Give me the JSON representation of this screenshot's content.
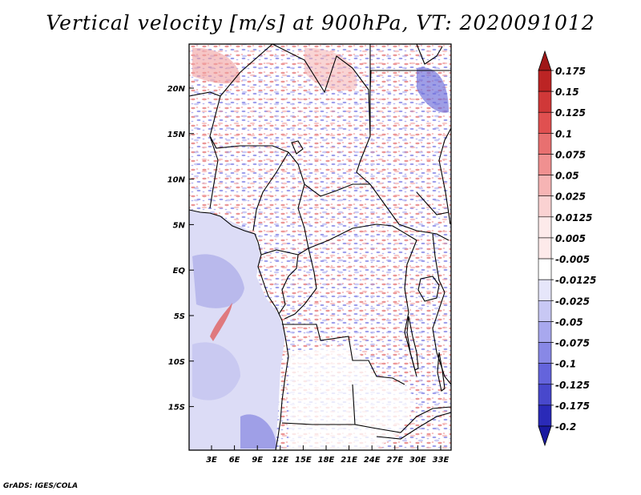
{
  "title": "Vertical velocity [m/s] at 900hPa, VT: 2020091012",
  "credit": "GrADS: IGES/COLA",
  "map": {
    "lat_labels": [
      "20N",
      "15N",
      "10N",
      "5N",
      "EQ",
      "5S",
      "10S",
      "15S"
    ],
    "lon_labels": [
      "3E",
      "6E",
      "9E",
      "12E",
      "15E",
      "18E",
      "21E",
      "24E",
      "27E",
      "30E",
      "33E"
    ]
  },
  "colorbar": {
    "levels": [
      {
        "label": "0.175",
        "color": "#a01818"
      },
      {
        "label": "0.15",
        "color": "#bc2424"
      },
      {
        "label": "0.125",
        "color": "#d03838"
      },
      {
        "label": "0.1",
        "color": "#e05050"
      },
      {
        "label": "0.075",
        "color": "#e87070"
      },
      {
        "label": "0.05",
        "color": "#f09090"
      },
      {
        "label": "0.025",
        "color": "#f6b4b4"
      },
      {
        "label": "0.0125",
        "color": "#fad2d2"
      },
      {
        "label": "0.005",
        "color": "#fdeaea"
      },
      {
        "label": "-0.005",
        "color": "#ffffff"
      },
      {
        "label": "-0.0125",
        "color": "#e6e6fa"
      },
      {
        "label": "-0.025",
        "color": "#c8c8f4"
      },
      {
        "label": "-0.05",
        "color": "#a8a8ee"
      },
      {
        "label": "-0.075",
        "color": "#8888e6"
      },
      {
        "label": "-0.1",
        "color": "#6464dc"
      },
      {
        "label": "-0.125",
        "color": "#4848cc"
      },
      {
        "label": "-0.175",
        "color": "#2a2ab8"
      },
      {
        "label": "-0.2",
        "color": "#1a1aa0"
      }
    ],
    "top_color": "#a01818",
    "bottom_color": "#1a1aa0"
  }
}
